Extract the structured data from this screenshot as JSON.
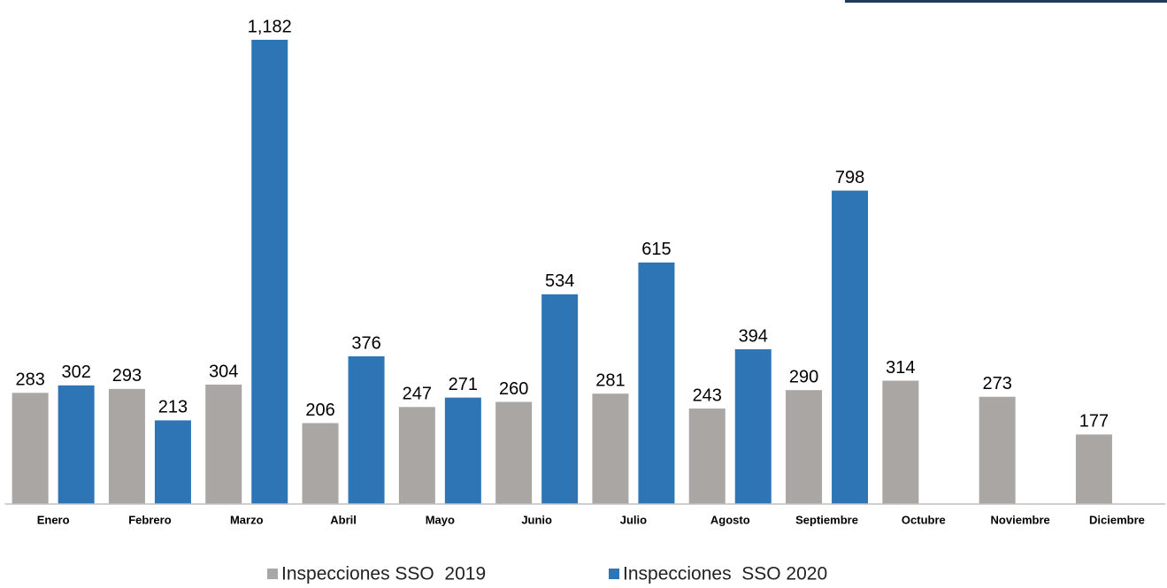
{
  "chart_data": {
    "type": "bar",
    "categories": [
      "Enero",
      "Febrero",
      "Marzo",
      "Abril",
      "Mayo",
      "Junio",
      "Julio",
      "Agosto",
      "Septiembre",
      "Octubre",
      "Noviembre",
      "Diciembre"
    ],
    "series": [
      {
        "name": "Inspecciones SSO  2019",
        "color": "#a9a6a4",
        "values": [
          283,
          293,
          304,
          206,
          247,
          260,
          281,
          243,
          290,
          314,
          273,
          177
        ]
      },
      {
        "name": "Inspecciones  SSO 2020",
        "color": "#2e75b6",
        "values": [
          302,
          213,
          1182,
          376,
          271,
          534,
          615,
          394,
          798,
          null,
          null,
          null
        ],
        "value_labels": [
          "302",
          "213",
          "1,182",
          "376",
          "271",
          "534",
          "615",
          "394",
          "798",
          null,
          null,
          null
        ]
      }
    ],
    "ylim": [
      0,
      1200
    ],
    "legend": "bottom"
  }
}
